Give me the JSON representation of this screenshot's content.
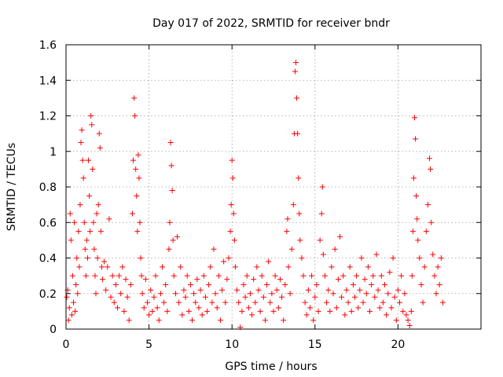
{
  "chart_data": {
    "type": "scatter",
    "title": "Day 017 of 2022, SRMTID for receiver bndr",
    "xlabel": "GPS time / hours",
    "ylabel": "SRMTID / TECUs",
    "xlim": [
      0,
      25
    ],
    "ylim": [
      0,
      1.6
    ],
    "x_ticks": [
      0,
      5,
      10,
      15,
      20
    ],
    "x_tick_labels": [
      "0",
      "5",
      "10",
      "15",
      "20"
    ],
    "y_ticks": [
      0,
      0.2,
      0.4,
      0.6,
      0.8,
      1,
      1.2,
      1.4,
      1.6
    ],
    "y_tick_labels": [
      "0",
      "0.2",
      "0.4",
      "0.6",
      "0.8",
      "1",
      "1.2",
      "1.4",
      "1.6"
    ],
    "grid": true,
    "marker": "plus",
    "color": "#ff0000",
    "series": [
      {
        "name": "SRMTID",
        "points": [
          [
            0.05,
            0.18
          ],
          [
            0.1,
            0.22
          ],
          [
            0.15,
            0.05
          ],
          [
            0.2,
            0.12
          ],
          [
            0.25,
            0.65
          ],
          [
            0.3,
            0.5
          ],
          [
            0.35,
            0.08
          ],
          [
            0.4,
            0.3
          ],
          [
            0.45,
            0.15
          ],
          [
            0.5,
            0.6
          ],
          [
            0.55,
            0.1
          ],
          [
            0.6,
            0.25
          ],
          [
            0.65,
            0.4
          ],
          [
            0.7,
            0.2
          ],
          [
            0.75,
            0.55
          ],
          [
            0.8,
            0.35
          ],
          [
            0.85,
            0.7
          ],
          [
            0.9,
            1.05
          ],
          [
            0.95,
            1.12
          ],
          [
            1.0,
            0.95
          ],
          [
            1.05,
            0.85
          ],
          [
            1.1,
            0.6
          ],
          [
            1.15,
            0.45
          ],
          [
            1.2,
            0.3
          ],
          [
            1.25,
            0.5
          ],
          [
            1.3,
            0.4
          ],
          [
            1.35,
            0.95
          ],
          [
            1.4,
            0.75
          ],
          [
            1.45,
            0.55
          ],
          [
            1.5,
            1.2
          ],
          [
            1.55,
            1.15
          ],
          [
            1.6,
            0.9
          ],
          [
            1.65,
            0.6
          ],
          [
            1.7,
            0.45
          ],
          [
            1.75,
            0.3
          ],
          [
            1.8,
            0.2
          ],
          [
            1.85,
            0.65
          ],
          [
            1.9,
            0.4
          ],
          [
            1.95,
            0.7
          ],
          [
            2.0,
            1.1
          ],
          [
            2.05,
            1.02
          ],
          [
            2.1,
            0.55
          ],
          [
            2.15,
            0.35
          ],
          [
            2.2,
            0.28
          ],
          [
            2.3,
            0.38
          ],
          [
            2.4,
            0.22
          ],
          [
            2.5,
            0.35
          ],
          [
            2.6,
            0.62
          ],
          [
            2.7,
            0.18
          ],
          [
            2.8,
            0.3
          ],
          [
            2.9,
            0.15
          ],
          [
            3.0,
            0.25
          ],
          [
            3.1,
            0.12
          ],
          [
            3.2,
            0.3
          ],
          [
            3.3,
            0.2
          ],
          [
            3.4,
            0.35
          ],
          [
            3.5,
            0.1
          ],
          [
            3.6,
            0.28
          ],
          [
            3.7,
            0.18
          ],
          [
            3.8,
            0.05
          ],
          [
            3.9,
            0.25
          ],
          [
            4.0,
            0.65
          ],
          [
            4.05,
            0.95
          ],
          [
            4.1,
            1.3
          ],
          [
            4.15,
            1.2
          ],
          [
            4.2,
            0.9
          ],
          [
            4.25,
            0.75
          ],
          [
            4.3,
            0.55
          ],
          [
            4.35,
            0.98
          ],
          [
            4.4,
            0.85
          ],
          [
            4.45,
            0.6
          ],
          [
            4.5,
            0.4
          ],
          [
            4.55,
            0.3
          ],
          [
            4.6,
            0.2
          ],
          [
            4.7,
            0.12
          ],
          [
            4.8,
            0.28
          ],
          [
            4.9,
            0.15
          ],
          [
            5.0,
            0.08
          ],
          [
            5.1,
            0.22
          ],
          [
            5.2,
            0.1
          ],
          [
            5.3,
            0.18
          ],
          [
            5.4,
            0.3
          ],
          [
            5.5,
            0.12
          ],
          [
            5.6,
            0.05
          ],
          [
            5.7,
            0.2
          ],
          [
            5.8,
            0.35
          ],
          [
            5.9,
            0.15
          ],
          [
            6.0,
            0.25
          ],
          [
            6.1,
            0.1
          ],
          [
            6.2,
            0.45
          ],
          [
            6.25,
            0.6
          ],
          [
            6.3,
            1.05
          ],
          [
            6.35,
            0.92
          ],
          [
            6.4,
            0.78
          ],
          [
            6.45,
            0.5
          ],
          [
            6.5,
            0.3
          ],
          [
            6.6,
            0.2
          ],
          [
            6.7,
            0.52
          ],
          [
            6.8,
            0.15
          ],
          [
            6.9,
            0.35
          ],
          [
            7.0,
            0.08
          ],
          [
            7.1,
            0.22
          ],
          [
            7.2,
            0.18
          ],
          [
            7.3,
            0.3
          ],
          [
            7.4,
            0.1
          ],
          [
            7.5,
            0.25
          ],
          [
            7.6,
            0.05
          ],
          [
            7.7,
            0.2
          ],
          [
            7.8,
            0.15
          ],
          [
            7.9,
            0.28
          ],
          [
            8.0,
            0.12
          ],
          [
            8.1,
            0.22
          ],
          [
            8.2,
            0.08
          ],
          [
            8.3,
            0.3
          ],
          [
            8.4,
            0.18
          ],
          [
            8.5,
            0.1
          ],
          [
            8.6,
            0.25
          ],
          [
            8.7,
            0.35
          ],
          [
            8.8,
            0.15
          ],
          [
            8.9,
            0.45
          ],
          [
            9.0,
            0.2
          ],
          [
            9.1,
            0.12
          ],
          [
            9.2,
            0.3
          ],
          [
            9.3,
            0.05
          ],
          [
            9.4,
            0.22
          ],
          [
            9.5,
            0.38
          ],
          [
            9.6,
            0.15
          ],
          [
            9.7,
            0.28
          ],
          [
            9.8,
            0.4
          ],
          [
            9.9,
            0.55
          ],
          [
            9.95,
            0.7
          ],
          [
            10.0,
            0.95
          ],
          [
            10.05,
            0.85
          ],
          [
            10.1,
            0.65
          ],
          [
            10.15,
            0.5
          ],
          [
            10.2,
            0.35
          ],
          [
            10.3,
            0.22
          ],
          [
            10.4,
            0.15
          ],
          [
            10.5,
            0.01
          ],
          [
            10.6,
            0.1
          ],
          [
            10.7,
            0.25
          ],
          [
            10.8,
            0.18
          ],
          [
            10.9,
            0.3
          ],
          [
            11.0,
            0.12
          ],
          [
            11.1,
            0.2
          ],
          [
            11.2,
            0.08
          ],
          [
            11.3,
            0.28
          ],
          [
            11.4,
            0.15
          ],
          [
            11.5,
            0.35
          ],
          [
            11.6,
            0.22
          ],
          [
            11.7,
            0.1
          ],
          [
            11.8,
            0.3
          ],
          [
            11.9,
            0.18
          ],
          [
            12.0,
            0.05
          ],
          [
            12.1,
            0.25
          ],
          [
            12.2,
            0.38
          ],
          [
            12.3,
            0.15
          ],
          [
            12.4,
            0.2
          ],
          [
            12.5,
            0.1
          ],
          [
            12.6,
            0.3
          ],
          [
            12.7,
            0.22
          ],
          [
            12.8,
            0.12
          ],
          [
            12.9,
            0.28
          ],
          [
            13.0,
            0.18
          ],
          [
            13.1,
            0.05
          ],
          [
            13.2,
            0.25
          ],
          [
            13.3,
            0.55
          ],
          [
            13.35,
            0.62
          ],
          [
            13.4,
            0.35
          ],
          [
            13.5,
            0.2
          ],
          [
            13.6,
            0.45
          ],
          [
            13.7,
            0.7
          ],
          [
            13.75,
            1.1
          ],
          [
            13.8,
            1.45
          ],
          [
            13.85,
            1.5
          ],
          [
            13.9,
            1.3
          ],
          [
            13.95,
            1.1
          ],
          [
            14.0,
            0.85
          ],
          [
            14.05,
            0.65
          ],
          [
            14.1,
            0.5
          ],
          [
            14.2,
            0.4
          ],
          [
            14.3,
            0.3
          ],
          [
            14.4,
            0.15
          ],
          [
            14.5,
            0.08
          ],
          [
            14.6,
            0.22
          ],
          [
            14.7,
            0.12
          ],
          [
            14.8,
            0.3
          ],
          [
            14.9,
            0.05
          ],
          [
            15.0,
            0.18
          ],
          [
            15.1,
            0.25
          ],
          [
            15.2,
            0.1
          ],
          [
            15.3,
            0.5
          ],
          [
            15.4,
            0.65
          ],
          [
            15.45,
            0.8
          ],
          [
            15.5,
            0.42
          ],
          [
            15.6,
            0.3
          ],
          [
            15.7,
            0.15
          ],
          [
            15.8,
            0.22
          ],
          [
            15.9,
            0.1
          ],
          [
            16.0,
            0.35
          ],
          [
            16.1,
            0.2
          ],
          [
            16.2,
            0.45
          ],
          [
            16.3,
            0.12
          ],
          [
            16.4,
            0.28
          ],
          [
            16.5,
            0.52
          ],
          [
            16.6,
            0.18
          ],
          [
            16.7,
            0.3
          ],
          [
            16.8,
            0.08
          ],
          [
            16.9,
            0.22
          ],
          [
            17.0,
            0.15
          ],
          [
            17.1,
            0.35
          ],
          [
            17.2,
            0.1
          ],
          [
            17.3,
            0.25
          ],
          [
            17.4,
            0.18
          ],
          [
            17.5,
            0.3
          ],
          [
            17.6,
            0.12
          ],
          [
            17.7,
            0.22
          ],
          [
            17.8,
            0.4
          ],
          [
            17.9,
            0.15
          ],
          [
            18.0,
            0.28
          ],
          [
            18.1,
            0.2
          ],
          [
            18.2,
            0.35
          ],
          [
            18.3,
            0.1
          ],
          [
            18.4,
            0.25
          ],
          [
            18.5,
            0.3
          ],
          [
            18.6,
            0.18
          ],
          [
            18.7,
            0.42
          ],
          [
            18.8,
            0.22
          ],
          [
            18.9,
            0.12
          ],
          [
            19.0,
            0.3
          ],
          [
            19.1,
            0.15
          ],
          [
            19.2,
            0.25
          ],
          [
            19.3,
            0.08
          ],
          [
            19.4,
            0.2
          ],
          [
            19.5,
            0.32
          ],
          [
            19.6,
            0.12
          ],
          [
            19.7,
            0.4
          ],
          [
            19.8,
            0.18
          ],
          [
            19.9,
            0.05
          ],
          [
            20.0,
            0.22
          ],
          [
            20.1,
            0.15
          ],
          [
            20.2,
            0.3
          ],
          [
            20.3,
            0.1
          ],
          [
            20.4,
            0.2
          ],
          [
            20.5,
            0.08
          ],
          [
            20.6,
            0.05
          ],
          [
            20.7,
            0.02
          ],
          [
            20.8,
            0.1
          ],
          [
            20.85,
            0.3
          ],
          [
            20.9,
            0.55
          ],
          [
            20.95,
            0.85
          ],
          [
            21.0,
            1.19
          ],
          [
            21.05,
            1.07
          ],
          [
            21.1,
            0.75
          ],
          [
            21.15,
            0.62
          ],
          [
            21.2,
            0.5
          ],
          [
            21.3,
            0.4
          ],
          [
            21.4,
            0.25
          ],
          [
            21.5,
            0.15
          ],
          [
            21.6,
            0.35
          ],
          [
            21.7,
            0.55
          ],
          [
            21.8,
            0.7
          ],
          [
            21.9,
            0.96
          ],
          [
            21.95,
            0.9
          ],
          [
            22.0,
            0.6
          ],
          [
            22.1,
            0.42
          ],
          [
            22.2,
            0.3
          ],
          [
            22.3,
            0.2
          ],
          [
            22.4,
            0.35
          ],
          [
            22.5,
            0.25
          ],
          [
            22.6,
            0.4
          ],
          [
            22.7,
            0.15
          ]
        ]
      }
    ]
  }
}
